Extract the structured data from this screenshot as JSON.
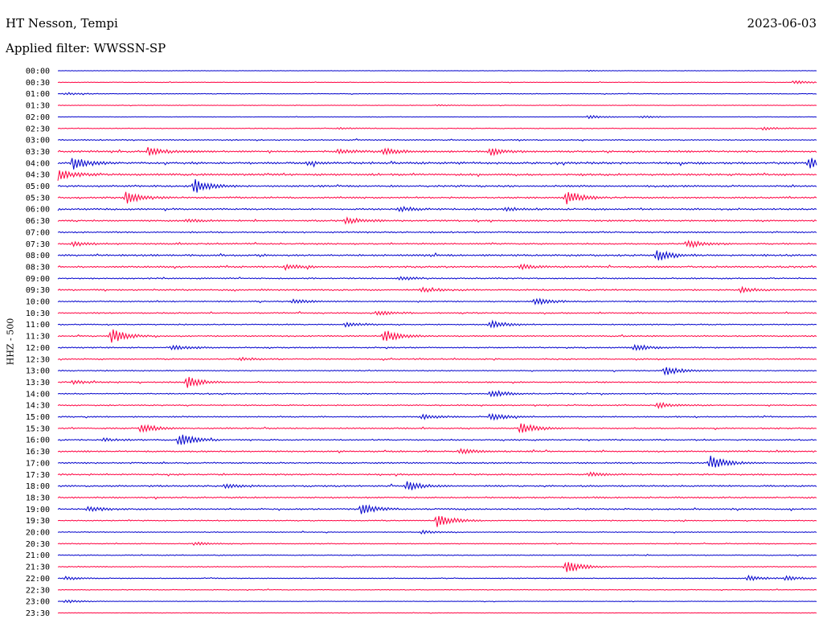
{
  "header": {
    "station": "HT Nesson, Tempi",
    "date": "2023-06-03",
    "filter_label": "Applied filter: WWSSN-SP"
  },
  "chart_data": {
    "type": "line",
    "chart_kind": "helicorder",
    "ylabel": "HHZ - 500",
    "row_labels": [
      "00:00",
      "00:30",
      "01:00",
      "01:30",
      "02:00",
      "02:30",
      "03:00",
      "03:30",
      "04:00",
      "04:30",
      "05:00",
      "05:30",
      "06:00",
      "06:30",
      "07:00",
      "07:30",
      "08:00",
      "08:30",
      "09:00",
      "09:30",
      "10:00",
      "10:30",
      "11:00",
      "11:30",
      "12:00",
      "12:30",
      "13:00",
      "13:30",
      "14:00",
      "14:30",
      "15:00",
      "15:30",
      "16:00",
      "16:30",
      "17:00",
      "17:30",
      "18:00",
      "18:30",
      "19:00",
      "19:30",
      "20:00",
      "20:30",
      "21:00",
      "21:30",
      "22:00",
      "22:30",
      "23:00",
      "23:30"
    ],
    "colors": [
      "#0000cc",
      "#ff0040"
    ],
    "grid": false,
    "noise_level": [
      0.2,
      0.3,
      0.4,
      0.3,
      0.3,
      0.4,
      0.6,
      1.0,
      1.2,
      1.1,
      1.0,
      0.9,
      0.9,
      0.9,
      0.8,
      0.8,
      1.0,
      1.0,
      0.7,
      0.8,
      0.7,
      0.7,
      0.6,
      0.7,
      0.7,
      0.7,
      0.6,
      0.7,
      0.6,
      0.6,
      0.7,
      0.7,
      0.7,
      0.8,
      0.8,
      0.8,
      0.9,
      0.8,
      0.8,
      0.6,
      0.5,
      0.5,
      0.5,
      0.5,
      0.5,
      0.4,
      0.3,
      0.3
    ],
    "events": [
      {
        "row": 0,
        "t": 0.7,
        "amp": 0.5
      },
      {
        "row": 1,
        "t": 0.97,
        "amp": 2.0
      },
      {
        "row": 2,
        "t": 0.01,
        "amp": 1.5
      },
      {
        "row": 3,
        "t": 0.5,
        "amp": 1.0
      },
      {
        "row": 4,
        "t": 0.7,
        "amp": 2.0
      },
      {
        "row": 4,
        "t": 0.77,
        "amp": 1.5
      },
      {
        "row": 5,
        "t": 0.37,
        "amp": 1.0
      },
      {
        "row": 5,
        "t": 0.93,
        "amp": 2.0
      },
      {
        "row": 7,
        "t": 0.12,
        "amp": 5.0
      },
      {
        "row": 7,
        "t": 0.37,
        "amp": 3.0
      },
      {
        "row": 7,
        "t": 0.43,
        "amp": 4.5
      },
      {
        "row": 7,
        "t": 0.57,
        "amp": 4.5
      },
      {
        "row": 8,
        "t": 0.02,
        "amp": 8.0
      },
      {
        "row": 8,
        "t": 0.33,
        "amp": 2.0
      },
      {
        "row": 8,
        "t": 0.99,
        "amp": 7.0
      },
      {
        "row": 9,
        "t": 0.0,
        "amp": 7.0
      },
      {
        "row": 10,
        "t": 0.18,
        "amp": 9.0
      },
      {
        "row": 11,
        "t": 0.09,
        "amp": 8.0
      },
      {
        "row": 11,
        "t": 0.67,
        "amp": 8.0
      },
      {
        "row": 12,
        "t": 0.45,
        "amp": 3.0
      },
      {
        "row": 12,
        "t": 0.59,
        "amp": 2.5
      },
      {
        "row": 13,
        "t": 0.38,
        "amp": 4.0
      },
      {
        "row": 13,
        "t": 0.17,
        "amp": 2.0
      },
      {
        "row": 15,
        "t": 0.02,
        "amp": 3.0
      },
      {
        "row": 15,
        "t": 0.83,
        "amp": 5.0
      },
      {
        "row": 16,
        "t": 0.79,
        "amp": 7.0
      },
      {
        "row": 17,
        "t": 0.3,
        "amp": 3.0
      },
      {
        "row": 17,
        "t": 0.61,
        "amp": 3.0
      },
      {
        "row": 18,
        "t": 0.45,
        "amp": 2.0
      },
      {
        "row": 19,
        "t": 0.48,
        "amp": 3.0
      },
      {
        "row": 19,
        "t": 0.9,
        "amp": 3.0
      },
      {
        "row": 20,
        "t": 0.31,
        "amp": 3.0
      },
      {
        "row": 20,
        "t": 0.63,
        "amp": 4.0
      },
      {
        "row": 21,
        "t": 0.42,
        "amp": 3.0
      },
      {
        "row": 22,
        "t": 0.38,
        "amp": 3.0
      },
      {
        "row": 22,
        "t": 0.57,
        "amp": 5.0
      },
      {
        "row": 23,
        "t": 0.07,
        "amp": 9.0
      },
      {
        "row": 23,
        "t": 0.43,
        "amp": 8.0
      },
      {
        "row": 24,
        "t": 0.15,
        "amp": 3.0
      },
      {
        "row": 24,
        "t": 0.76,
        "amp": 4.0
      },
      {
        "row": 25,
        "t": 0.24,
        "amp": 2.0
      },
      {
        "row": 26,
        "t": 0.8,
        "amp": 6.0
      },
      {
        "row": 27,
        "t": 0.17,
        "amp": 7.0
      },
      {
        "row": 27,
        "t": 0.02,
        "amp": 2.0
      },
      {
        "row": 28,
        "t": 0.57,
        "amp": 5.0
      },
      {
        "row": 29,
        "t": 0.79,
        "amp": 4.0
      },
      {
        "row": 30,
        "t": 0.48,
        "amp": 3.0
      },
      {
        "row": 30,
        "t": 0.57,
        "amp": 5.0
      },
      {
        "row": 31,
        "t": 0.11,
        "amp": 6.0
      },
      {
        "row": 31,
        "t": 0.61,
        "amp": 7.0
      },
      {
        "row": 32,
        "t": 0.16,
        "amp": 8.0
      },
      {
        "row": 32,
        "t": 0.06,
        "amp": 2.0
      },
      {
        "row": 33,
        "t": 0.53,
        "amp": 3.0
      },
      {
        "row": 34,
        "t": 0.86,
        "amp": 9.0
      },
      {
        "row": 35,
        "t": 0.7,
        "amp": 2.5
      },
      {
        "row": 36,
        "t": 0.46,
        "amp": 6.0
      },
      {
        "row": 36,
        "t": 0.22,
        "amp": 2.5
      },
      {
        "row": 38,
        "t": 0.04,
        "amp": 3.0
      },
      {
        "row": 38,
        "t": 0.4,
        "amp": 6.0
      },
      {
        "row": 39,
        "t": 0.5,
        "amp": 8.0
      },
      {
        "row": 40,
        "t": 0.48,
        "amp": 2.0
      },
      {
        "row": 41,
        "t": 0.18,
        "amp": 2.0
      },
      {
        "row": 43,
        "t": 0.67,
        "amp": 8.0
      },
      {
        "row": 44,
        "t": 0.91,
        "amp": 3.0
      },
      {
        "row": 44,
        "t": 0.96,
        "amp": 3.0
      },
      {
        "row": 44,
        "t": 0.01,
        "amp": 2.0
      },
      {
        "row": 46,
        "t": 0.01,
        "amp": 2.0
      }
    ]
  }
}
